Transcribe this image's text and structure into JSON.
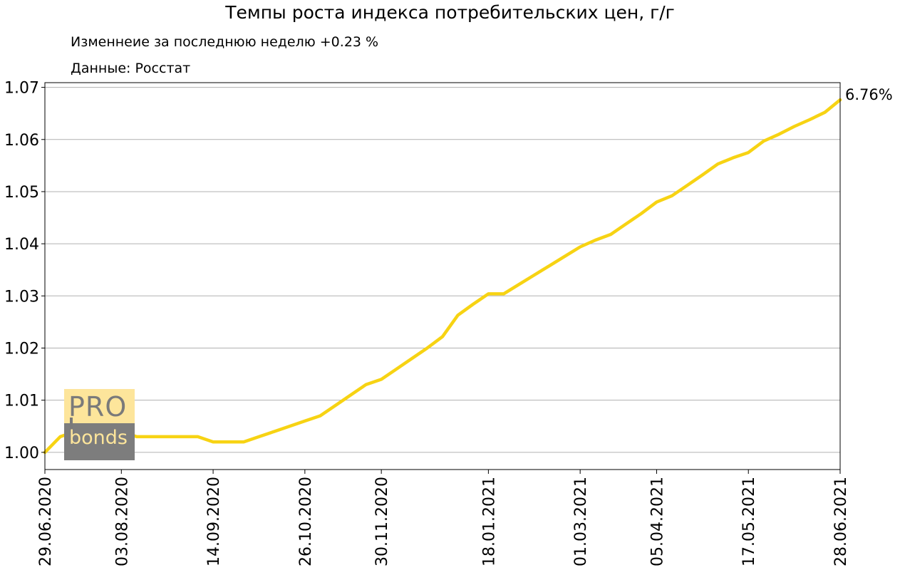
{
  "header": {
    "title": "Темпы роста индекса потребительских цен, г/г",
    "subtitle_change": "Изменнеие за последнюю неделю +0.23 %",
    "subtitle_source": "Данные: Росстат"
  },
  "logo": {
    "top": "PRO",
    "bottom": "bonds"
  },
  "colors": {
    "line": "#f7d313",
    "grid": "#b0b0b0",
    "axis": "#000000"
  },
  "chart_data": {
    "type": "line",
    "title": "Темпы роста индекса потребительских цен, г/г",
    "xlabel": "",
    "ylabel": "",
    "grid": "horizontal",
    "ylim": [
      0.9967,
      1.0709
    ],
    "xlim": [
      "29.06.2020",
      "28.06.2021"
    ],
    "y_ticks": [
      "1.00",
      "1.01",
      "1.02",
      "1.03",
      "1.04",
      "1.05",
      "1.06",
      "1.07"
    ],
    "x_ticks": [
      "29.06.2020",
      "03.08.2020",
      "14.09.2020",
      "26.10.2020",
      "30.11.2020",
      "18.01.2021",
      "01.03.2021",
      "05.04.2021",
      "17.05.2021",
      "28.06.2021"
    ],
    "end_label": "6.76%",
    "series": [
      {
        "x": [
          "29.06.2020",
          "06.07.2020",
          "13.07.2020",
          "20.07.2020",
          "27.07.2020",
          "03.08.2020",
          "10.08.2020",
          "17.08.2020",
          "24.08.2020",
          "31.08.2020",
          "07.09.2020",
          "14.09.2020",
          "21.09.2020",
          "28.09.2020",
          "05.10.2020",
          "12.10.2020",
          "19.10.2020",
          "26.10.2020",
          "02.11.2020",
          "09.11.2020",
          "16.11.2020",
          "23.11.2020",
          "30.11.2020",
          "07.12.2020",
          "14.12.2020",
          "21.12.2020",
          "28.12.2020",
          "04.01.2021",
          "11.01.2021",
          "18.01.2021",
          "25.01.2021",
          "01.02.2021",
          "08.02.2021",
          "15.02.2021",
          "22.02.2021",
          "01.03.2021",
          "08.03.2021",
          "15.03.2021",
          "22.03.2021",
          "29.03.2021",
          "05.04.2021",
          "12.04.2021",
          "19.04.2021",
          "26.04.2021",
          "03.05.2021",
          "10.05.2021",
          "17.05.2021",
          "24.05.2021",
          "31.05.2021",
          "07.06.2021",
          "14.06.2021",
          "21.06.2021",
          "28.06.2021"
        ],
        "y": [
          1.0,
          1.003,
          1.004,
          1.004,
          1.004,
          1.004,
          1.003,
          1.003,
          1.003,
          1.003,
          1.003,
          1.002,
          1.002,
          1.002,
          1.003,
          1.004,
          1.005,
          1.006,
          1.007,
          1.009,
          1.011,
          1.013,
          1.014,
          1.016,
          1.018,
          1.02,
          1.0222,
          1.0263,
          1.0284,
          1.0304,
          1.0304,
          1.0322,
          1.034,
          1.0358,
          1.0376,
          1.0394,
          1.0407,
          1.0418,
          1.0438,
          1.0458,
          1.048,
          1.0492,
          1.0512,
          1.0532,
          1.0553,
          1.0565,
          1.0575,
          1.0597,
          1.061,
          1.0625,
          1.0638,
          1.0652,
          1.0676
        ]
      }
    ]
  }
}
